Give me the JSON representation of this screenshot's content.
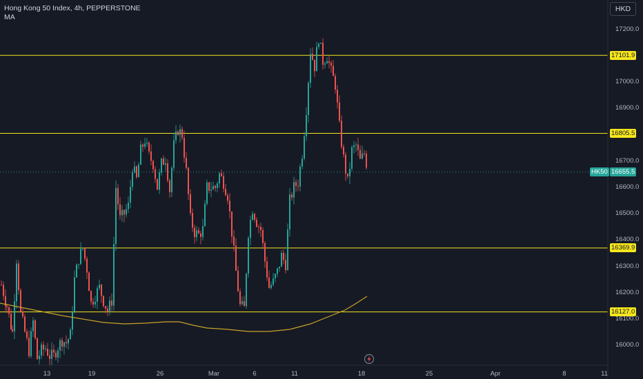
{
  "legend": {
    "title": "Hong Kong 50 Index, 4h, PEPPERSTONE",
    "indicator": "MA"
  },
  "currency_button": "HKD",
  "colors": {
    "background": "#161a25",
    "up": "#26a69a",
    "down": "#ef5350",
    "hline": "#f5e61d",
    "ma": "#c9a227",
    "axis_text": "#b2b5be"
  },
  "price_axis": {
    "ticks": [
      "17200.0",
      "17000.0",
      "16900.0",
      "16700.0",
      "16600.0",
      "16500.0",
      "16400.0",
      "16300.0",
      "16200.0",
      "16100.0",
      "16000.0"
    ]
  },
  "time_axis": {
    "ticks": [
      "13",
      "19",
      "26",
      "Mar",
      "6",
      "11",
      "18",
      "25",
      "Apr",
      "8",
      "11"
    ]
  },
  "horizontal_lines": [
    {
      "price": 17101.9,
      "label": "17101.9"
    },
    {
      "price": 16805.5,
      "label": "16805.5"
    },
    {
      "price": 16369.9,
      "label": "16369.9"
    },
    {
      "price": 16127.0,
      "label": "16127.0"
    }
  ],
  "last_price": {
    "symbol": "HK50",
    "value": 16655.5,
    "label": "16655.5"
  },
  "flash_icon": "lightning-icon"
}
